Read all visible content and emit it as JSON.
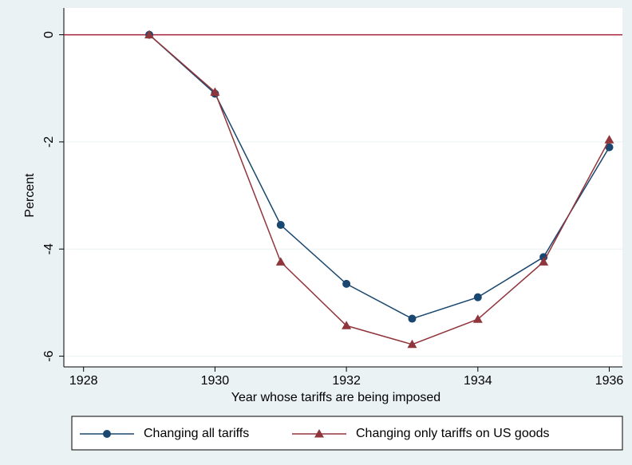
{
  "chart_data": {
    "type": "line",
    "x": [
      1929,
      1930,
      1931,
      1932,
      1933,
      1934,
      1935,
      1936
    ],
    "series": [
      {
        "name": "Changing all tariffs",
        "color": "#1a476f",
        "marker": "circle",
        "values": [
          0,
          -1.1,
          -3.55,
          -4.65,
          -5.3,
          -4.9,
          -4.15,
          -2.1
        ]
      },
      {
        "name": "Changing only tariffs on US goods",
        "color": "#90353b",
        "marker": "triangle",
        "values": [
          0,
          -1.07,
          -4.24,
          -5.43,
          -5.78,
          -5.31,
          -4.24,
          -1.96
        ]
      }
    ],
    "xlabel": "Year whose tariffs are being imposed",
    "ylabel": "Percent",
    "xlim": [
      1927.7,
      1936.2
    ],
    "xticks": [
      1928,
      1930,
      1932,
      1934,
      1936
    ],
    "ylim": [
      -6.2,
      0.5
    ],
    "yticks": [
      0,
      -2,
      -4,
      -6
    ],
    "grid": true,
    "reference_line": {
      "value": 0,
      "color": "#a8223a"
    },
    "legend": "bottom"
  }
}
